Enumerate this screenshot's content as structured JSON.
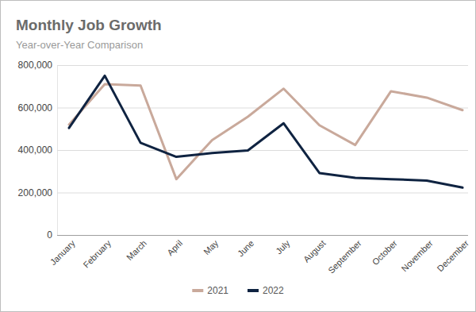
{
  "chart_data": {
    "type": "line",
    "title": "Monthly Job Growth",
    "subtitle": "Year-over-Year Comparison",
    "categories": [
      "January",
      "February",
      "March",
      "April",
      "May",
      "June",
      "July",
      "August",
      "September",
      "October",
      "November",
      "December"
    ],
    "series": [
      {
        "name": "2021",
        "color": "#c9a99b",
        "values": [
          520000,
          710000,
          704000,
          263000,
          447000,
          557000,
          689000,
          517000,
          424000,
          677000,
          647000,
          588000
        ]
      },
      {
        "name": "2022",
        "color": "#0f2341",
        "values": [
          504000,
          750000,
          434000,
          368000,
          386000,
          398000,
          526000,
          292000,
          269000,
          263000,
          256000,
          223000
        ]
      }
    ],
    "ylim": [
      0,
      800000
    ],
    "yticks": [
      0,
      {
        "value": 200000,
        "label": "200,000"
      },
      {
        "value": 400000,
        "label": "400,000"
      },
      {
        "value": 600000,
        "label": "600,000"
      },
      {
        "value": 800000,
        "label": "800,000"
      }
    ],
    "grid": true,
    "legend": "bottom"
  }
}
